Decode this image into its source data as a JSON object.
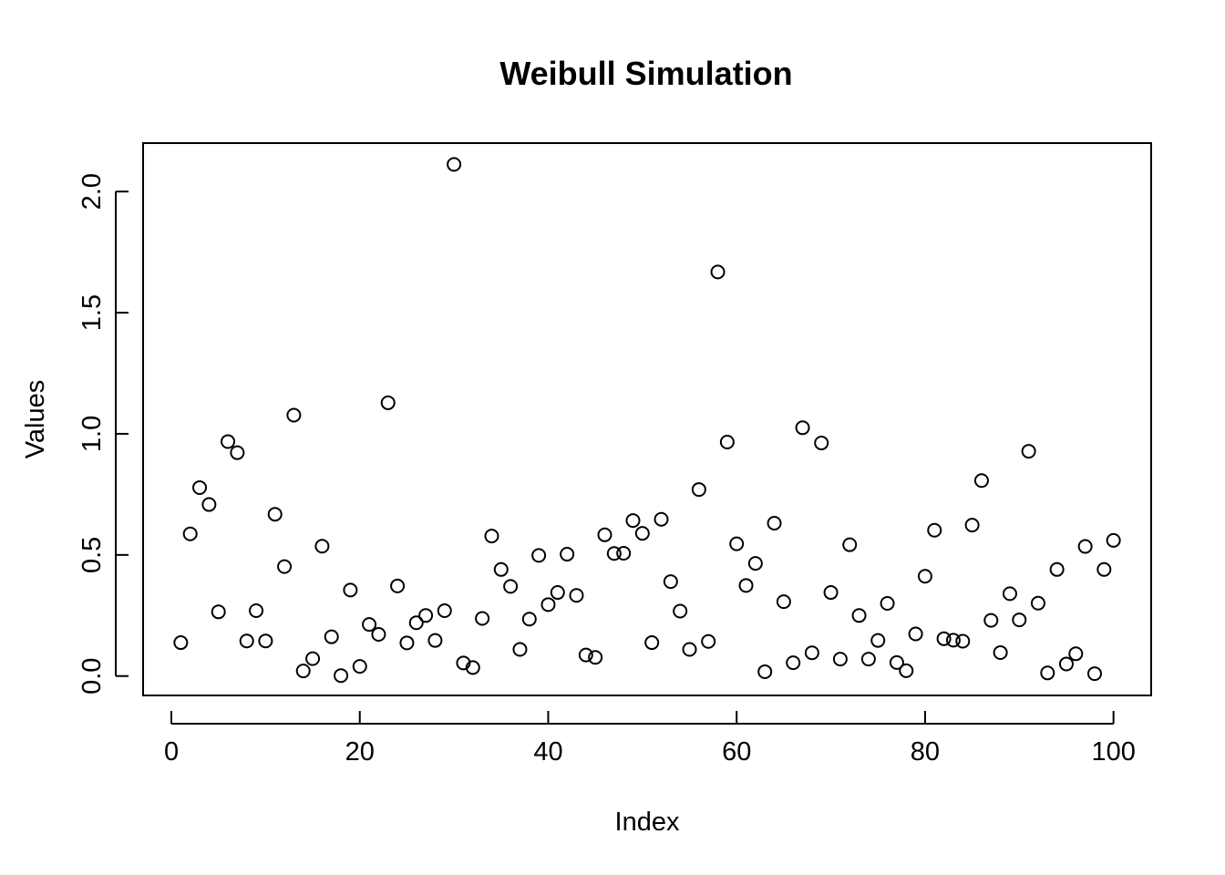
{
  "chart_data": {
    "type": "scatter",
    "title": "Weibull Simulation",
    "xlabel": "Index",
    "ylabel": "Values",
    "xlim": [
      -3,
      104
    ],
    "ylim": [
      -0.08,
      2.2
    ],
    "xticks": [
      0,
      20,
      40,
      60,
      80,
      100
    ],
    "xtick_labels": [
      "0",
      "20",
      "40",
      "60",
      "80",
      "100"
    ],
    "yticks": [
      0,
      0.5,
      1,
      1.5,
      2
    ],
    "ytick_labels": [
      "0.0",
      "0.5",
      "1.0",
      "1.5",
      "2.0"
    ],
    "grid": false,
    "marker": "open-circle",
    "x": [
      1,
      2,
      3,
      4,
      5,
      6,
      7,
      8,
      9,
      10,
      11,
      12,
      13,
      14,
      15,
      16,
      17,
      18,
      19,
      20,
      21,
      22,
      23,
      24,
      25,
      26,
      27,
      28,
      29,
      30,
      31,
      32,
      33,
      34,
      35,
      36,
      37,
      38,
      39,
      40,
      41,
      42,
      43,
      44,
      45,
      46,
      47,
      48,
      49,
      50,
      51,
      52,
      53,
      54,
      55,
      56,
      57,
      58,
      59,
      60,
      61,
      62,
      63,
      64,
      65,
      66,
      67,
      68,
      69,
      70,
      71,
      72,
      73,
      74,
      75,
      76,
      77,
      78,
      79,
      80,
      81,
      82,
      83,
      84,
      85,
      86,
      87,
      88,
      89,
      90,
      91,
      92,
      93,
      94,
      95,
      96,
      97,
      98,
      99,
      100
    ],
    "y": [
      0.138,
      0.587,
      0.778,
      0.708,
      0.265,
      0.968,
      0.922,
      0.145,
      0.27,
      0.145,
      0.668,
      0.452,
      1.077,
      0.021,
      0.072,
      0.536,
      0.162,
      0.002,
      0.355,
      0.04,
      0.213,
      0.172,
      1.128,
      0.372,
      0.137,
      0.22,
      0.25,
      0.147,
      0.27,
      2.112,
      0.054,
      0.035,
      0.238,
      0.578,
      0.44,
      0.37,
      0.11,
      0.235,
      0.498,
      0.295,
      0.345,
      0.503,
      0.333,
      0.087,
      0.077,
      0.583,
      0.506,
      0.507,
      0.642,
      0.589,
      0.138,
      0.647,
      0.39,
      0.268,
      0.11,
      0.77,
      0.143,
      1.668,
      0.966,
      0.546,
      0.374,
      0.465,
      0.018,
      0.631,
      0.307,
      0.055,
      1.025,
      0.096,
      0.962,
      0.345,
      0.07,
      0.542,
      0.25,
      0.07,
      0.147,
      0.3,
      0.056,
      0.022,
      0.174,
      0.412,
      0.602,
      0.154,
      0.148,
      0.144,
      0.623,
      0.807,
      0.23,
      0.097,
      0.34,
      0.232,
      0.928,
      0.301,
      0.013,
      0.44,
      0.05,
      0.092,
      0.535,
      0.01,
      0.44,
      0.56
    ]
  }
}
